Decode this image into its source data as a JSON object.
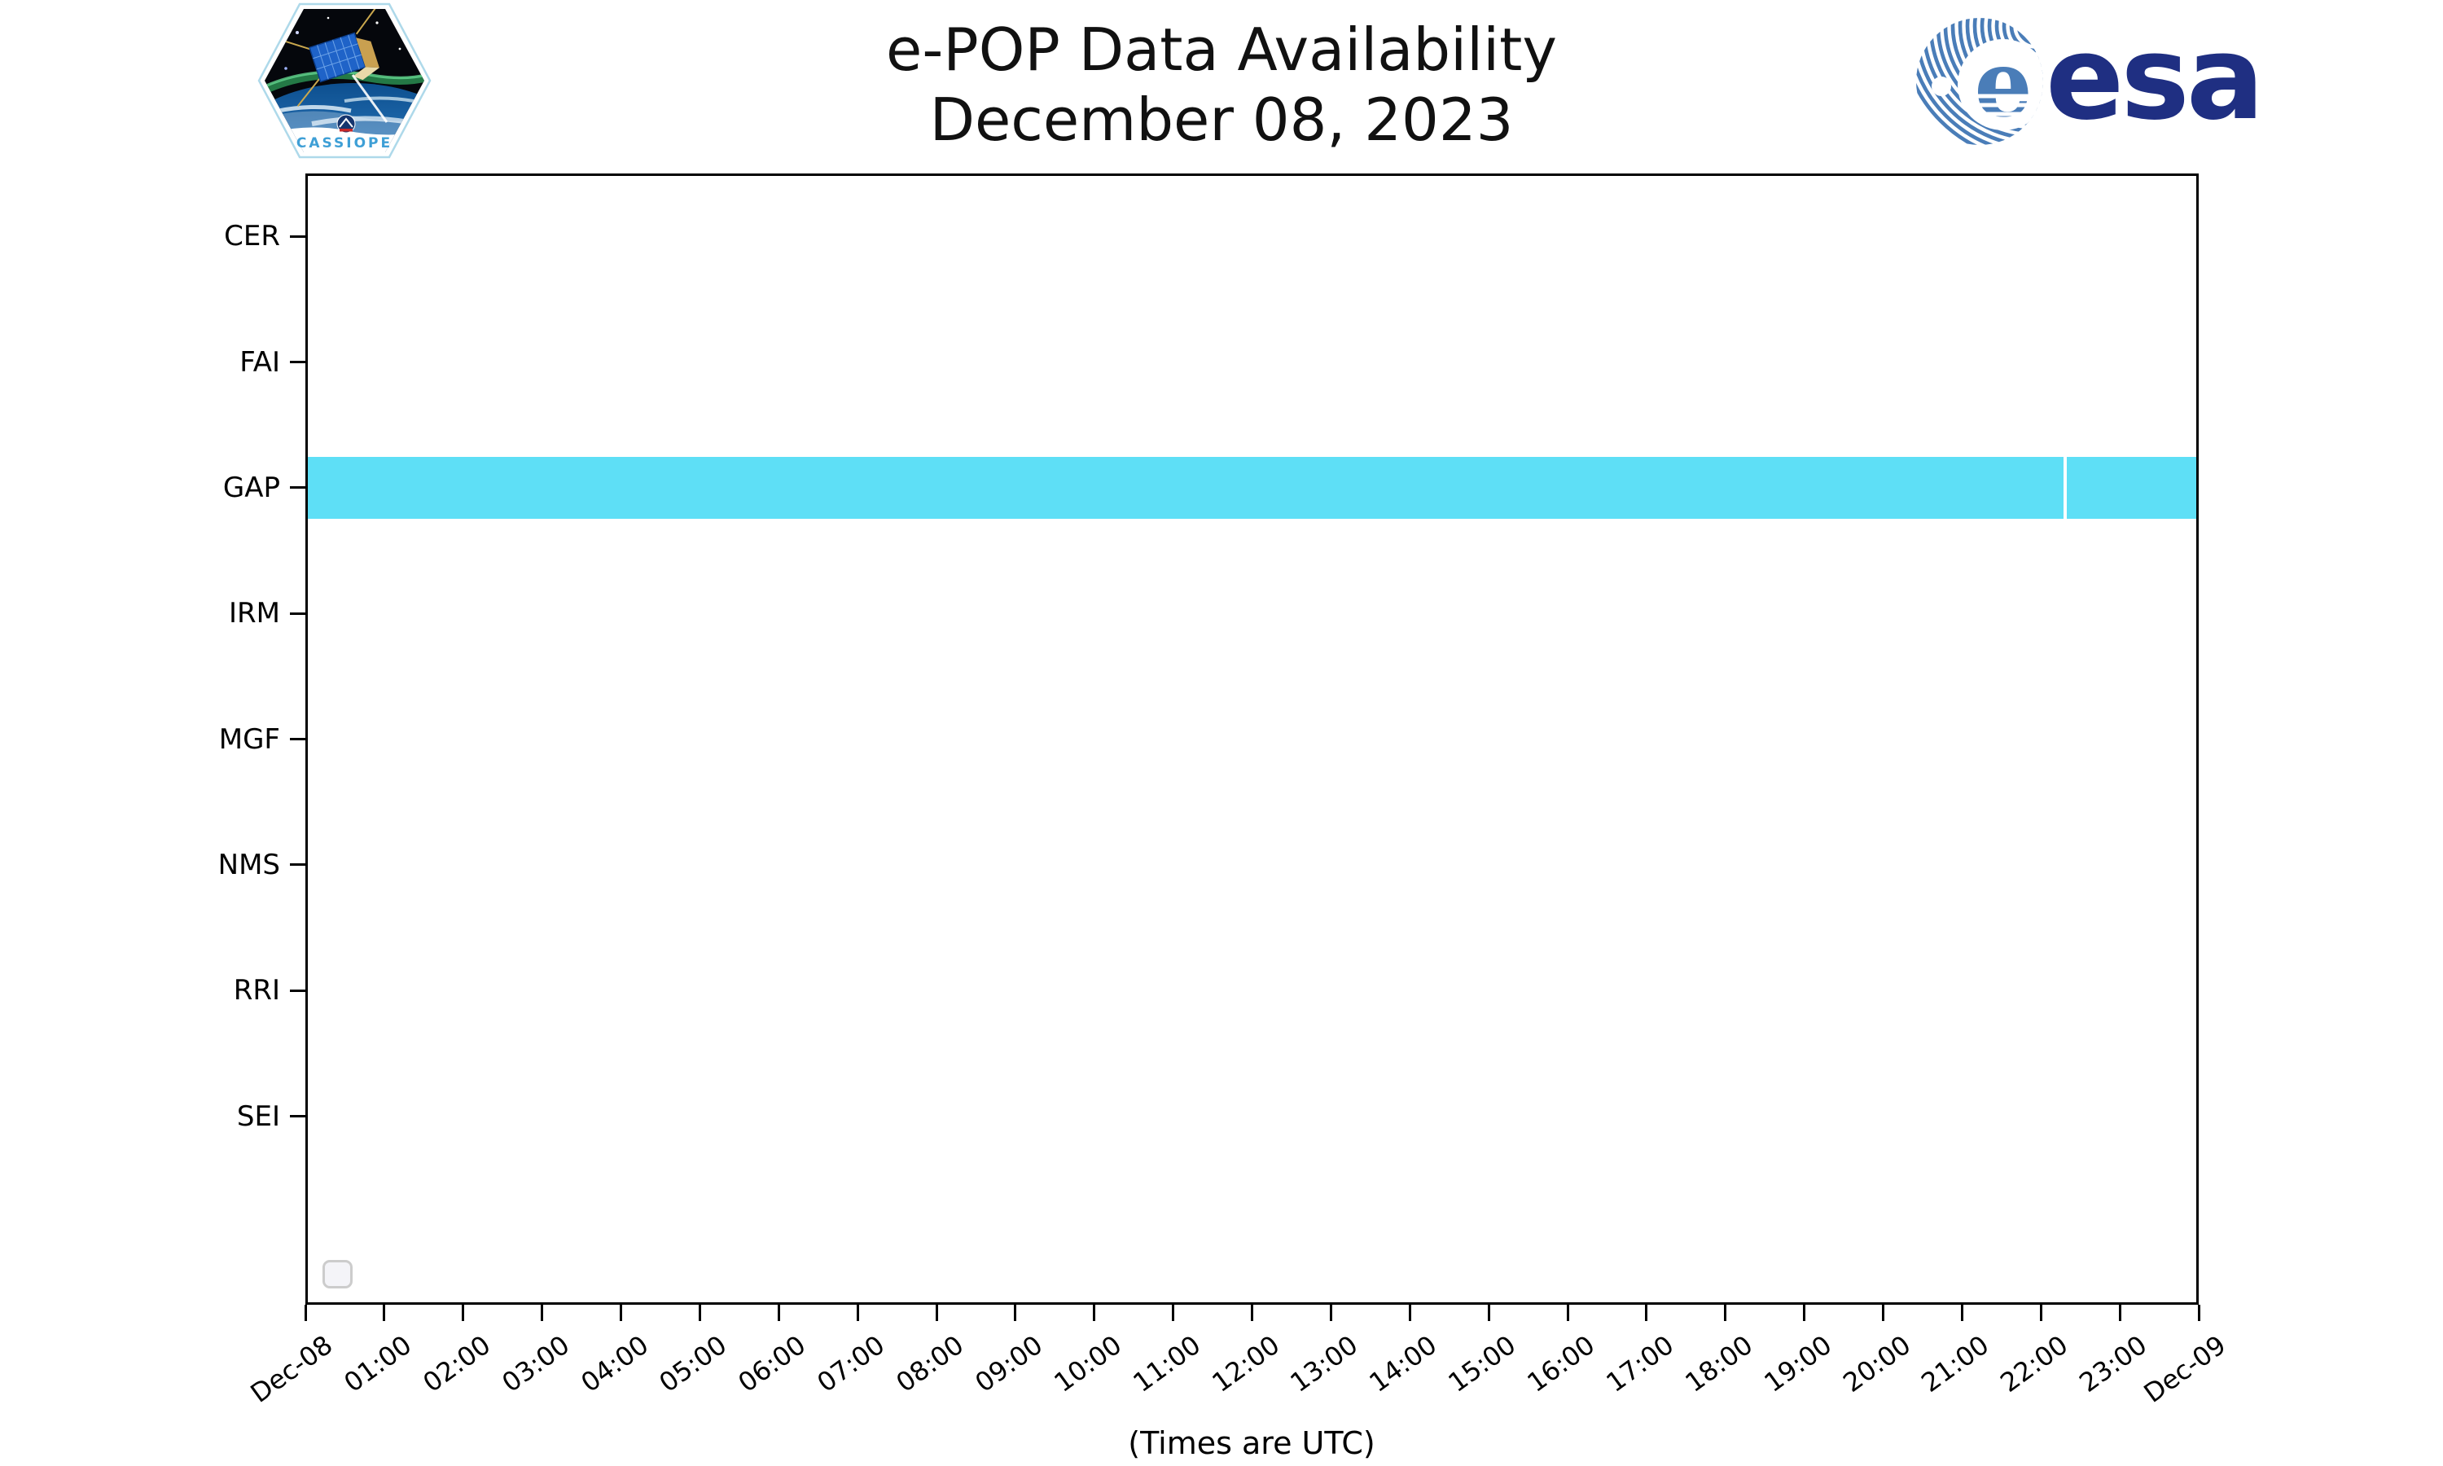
{
  "header": {
    "title_line1": "e-POP Data Availability",
    "title_line2": "December 08, 2023",
    "cassiope_label": "CASSIOPE",
    "esa_wordmark": "esa"
  },
  "chart_data": {
    "type": "bar",
    "variant": "timeline-availability",
    "title": "e-POP Data Availability",
    "subtitle": "December 08, 2023",
    "xlabel": "(Times are UTC)",
    "x_axis": {
      "start": "Dec-08 00:00 UTC",
      "end": "Dec-09 00:00 UTC",
      "hours_span": 24,
      "tick_labels": [
        "Dec-08",
        "01:00",
        "02:00",
        "03:00",
        "04:00",
        "05:00",
        "06:00",
        "07:00",
        "08:00",
        "09:00",
        "10:00",
        "11:00",
        "12:00",
        "13:00",
        "14:00",
        "15:00",
        "16:00",
        "17:00",
        "18:00",
        "19:00",
        "20:00",
        "21:00",
        "22:00",
        "23:00",
        "Dec-09"
      ]
    },
    "instruments": [
      "CER",
      "FAI",
      "GAP",
      "IRM",
      "MGF",
      "NMS",
      "RRI",
      "SEI"
    ],
    "series": [
      {
        "instrument": "GAP",
        "color": "#5edff6",
        "intervals_hours": [
          [
            0,
            22.318
          ],
          [
            22.358,
            24
          ]
        ],
        "note": "available nearly full day with a thin break near 22:20 UTC"
      }
    ],
    "layout": {
      "rows_including_empty_bottom_slot": 9,
      "grid": false,
      "legend_visible_empty_box_bottom_left": true
    }
  },
  "colors": {
    "bar_cyan": "#5edff6",
    "axis_black": "#000000",
    "esa_navy": "#1f2f82",
    "esa_steel_blue": "#4a7db8",
    "legend_border": "#cccccc",
    "cassiope_text_blue": "#3e9fd6"
  }
}
